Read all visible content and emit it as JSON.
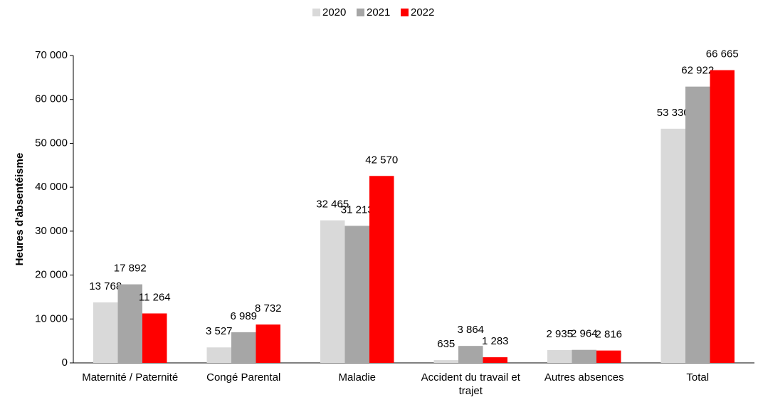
{
  "chart_data": {
    "type": "bar",
    "y_label": "Heures d'absentéisme",
    "categories": [
      "Maternité / Paternité",
      "Congé Parental",
      "Maladie",
      "Accident du travail et trajet",
      "Autres absences",
      "Total"
    ],
    "series": [
      {
        "name": "2020",
        "color": "#d9d9d9",
        "values": [
          13768,
          3527,
          32465,
          635,
          2935,
          53330
        ],
        "value_labels": [
          "13 768",
          "3 527",
          "32 465",
          "635",
          "2 935",
          "53 330"
        ]
      },
      {
        "name": "2021",
        "color": "#a6a6a6",
        "values": [
          17892,
          6989,
          31213,
          3864,
          2964,
          62922
        ],
        "value_labels": [
          "17 892",
          "6 989",
          "31 213",
          "3 864",
          "2 964",
          "62 922"
        ]
      },
      {
        "name": "2022",
        "color": "#ff0000",
        "values": [
          11264,
          8732,
          42570,
          1283,
          2816,
          66665
        ],
        "value_labels": [
          "11 264",
          "8 732",
          "42 570",
          "1 283",
          "2 816",
          "66 665"
        ]
      }
    ],
    "ylim": [
      0,
      70000
    ],
    "yticks": [
      0,
      {
        "value": 10000,
        "label": "10 000"
      },
      {
        "value": 20000,
        "label": "20 000"
      },
      {
        "value": 30000,
        "label": "30 000"
      },
      {
        "value": 40000,
        "label": "40 000"
      },
      {
        "value": 50000,
        "label": "50 000"
      },
      {
        "value": 60000,
        "label": "60 000"
      },
      {
        "value": 70000,
        "label": "70 000"
      }
    ],
    "legend": "top",
    "grid": false
  }
}
